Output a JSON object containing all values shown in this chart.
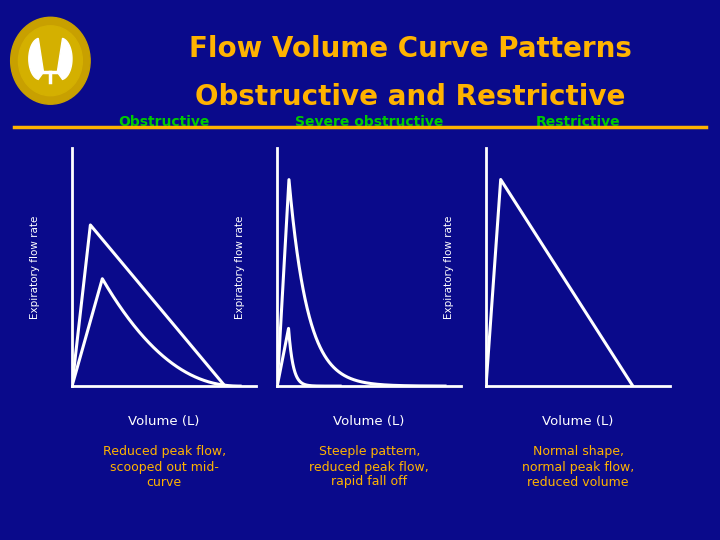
{
  "title_line1": "Flow Volume Curve Patterns",
  "title_line2": "Obstructive and Restrictive",
  "title_color": "#FFB300",
  "bg_color": "#0A0A8B",
  "separator_color": "#FFB300",
  "curve_color": "#FFFFFF",
  "label_green": "#00CC00",
  "label_yellow": "#FFB300",
  "panel_labels": [
    "Obstructive",
    "Severe obstructive",
    "Restrictive"
  ],
  "xlabel": "Volume (L)",
  "ylabel": "Expiratory flow rate",
  "descriptions": [
    "Reduced peak flow,\nscooped out mid-\ncurve",
    "Steeple pattern,\nreduced peak flow,\nrapid fall off",
    "Normal shape,\nnormal peak flow,\nreduced volume"
  ]
}
